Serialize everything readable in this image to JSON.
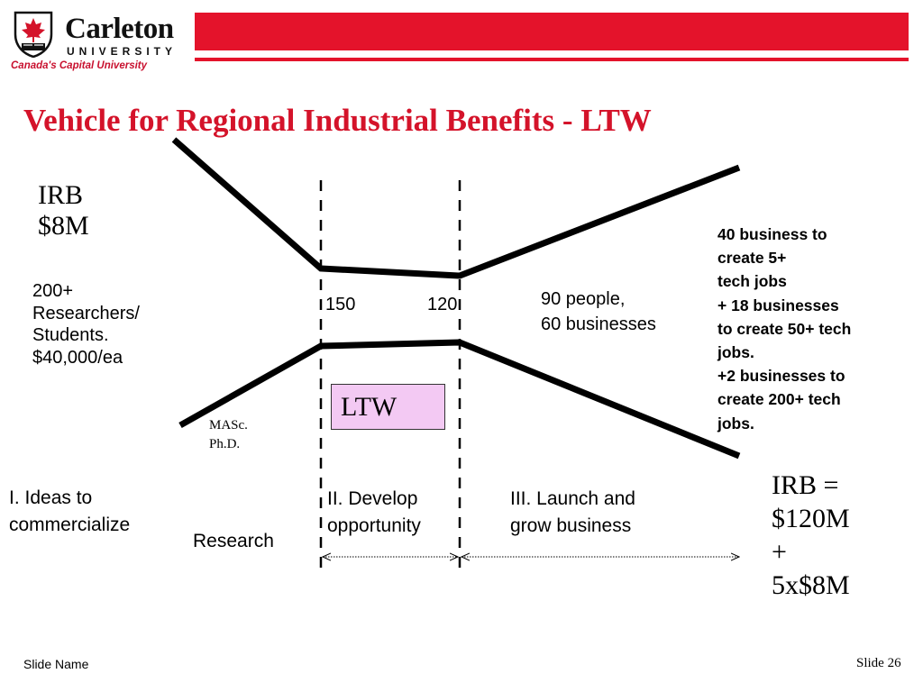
{
  "header": {
    "logo_name": "Carleton",
    "logo_university": "UNIVERSITY",
    "logo_tagline": "Canada's Capital University",
    "brand_color": "#e4132b"
  },
  "title": "Vehicle for Regional Industrial Benefits - LTW",
  "diagram": {
    "irb_small": [
      "IRB",
      "$8M"
    ],
    "researchers": [
      "200+",
      "Researchers/",
      "Students.",
      "$40,000/ea"
    ],
    "count_150": "150",
    "count_120": "120",
    "people": [
      "90 people,",
      "60 businesses"
    ],
    "business_note": [
      "40 business to",
      "create 5+",
      "tech jobs",
      "+ 18 businesses",
      "to create 50+ tech",
      "jobs.",
      "+2 businesses to",
      "create 200+ tech",
      "jobs."
    ],
    "ltw_label": "LTW",
    "degrees": [
      "MASc.",
      "Ph.D."
    ],
    "stage_1": [
      "I. Ideas to",
      "commercialize"
    ],
    "stage_2": [
      "II. Develop",
      "opportunity"
    ],
    "stage_3": [
      "III. Launch and",
      "grow business"
    ],
    "research_label": "Research",
    "irb_total": [
      "IRB =",
      "$120M",
      "+",
      "5x$8M"
    ],
    "ltw_box_color": "#f3c9f3"
  },
  "footer": {
    "slide_name": "Slide Name",
    "slide_number": "Slide 26"
  }
}
